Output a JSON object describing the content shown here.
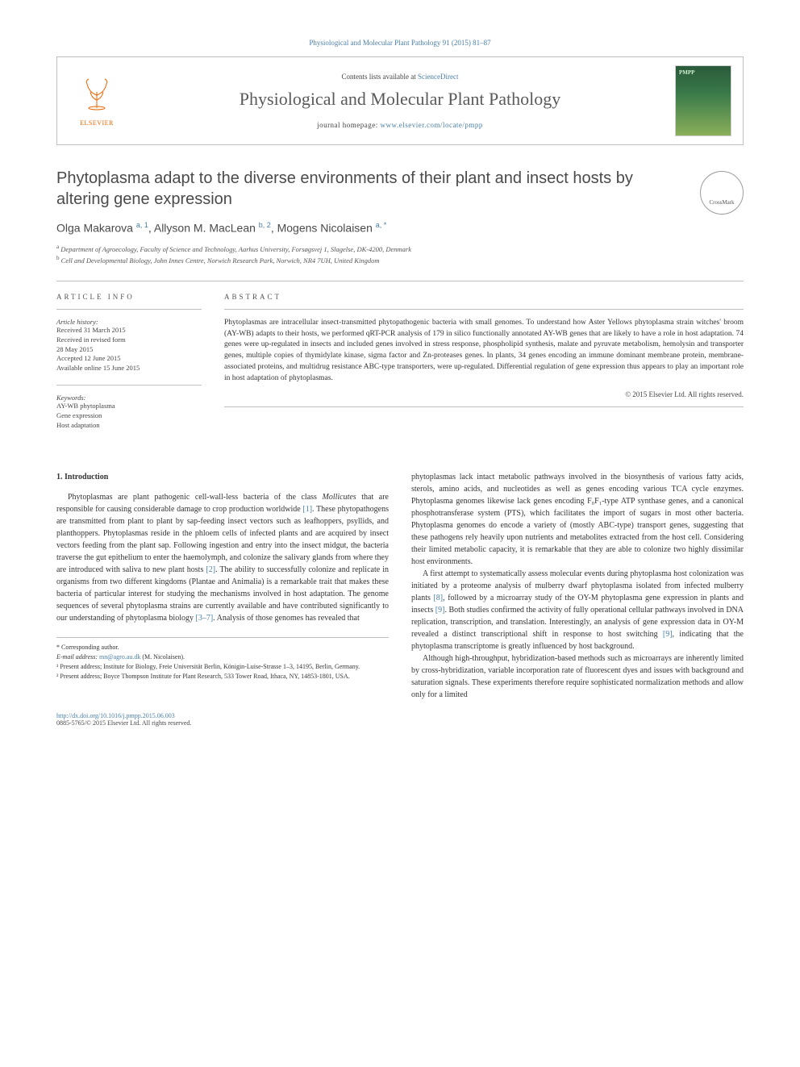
{
  "citation": "Physiological and Molecular Plant Pathology 91 (2015) 81–87",
  "header": {
    "contents_prefix": "Contents lists available at ",
    "contents_link": "ScienceDirect",
    "journal_name": "Physiological and Molecular Plant Pathology",
    "homepage_prefix": "journal homepage: ",
    "homepage_url": "www.elsevier.com/locate/pmpp",
    "publisher": "ELSEVIER",
    "cover_label": "PMPP"
  },
  "crossmark": "CrossMark",
  "title": "Phytoplasma adapt to the diverse environments of their plant and insect hosts by altering gene expression",
  "authors_html": "Olga Makarova <sup>a, 1</sup>, Allyson M. MacLean <sup>b, 2</sup>, Mogens Nicolaisen <sup>a, *</sup>",
  "affiliations": {
    "a": "Department of Agroecology, Faculty of Science and Technology, Aarhus University, Forsøgsvej 1, Slagelse, DK-4200, Denmark",
    "b": "Cell and Developmental Biology, John Innes Centre, Norwich Research Park, Norwich, NR4 7UH, United Kingdom"
  },
  "article_info": {
    "header": "ARTICLE INFO",
    "history_label": "Article history:",
    "history": [
      "Received 31 March 2015",
      "Received in revised form",
      "28 May 2015",
      "Accepted 12 June 2015",
      "Available online 15 June 2015"
    ],
    "keywords_label": "Keywords:",
    "keywords": [
      "AY-WB phytoplasma",
      "Gene expression",
      "Host adaptation"
    ]
  },
  "abstract": {
    "header": "ABSTRACT",
    "text": "Phytoplasmas are intracellular insect-transmitted phytopathogenic bacteria with small genomes. To understand how Aster Yellows phytoplasma strain witches' broom (AY-WB) adapts to their hosts, we performed qRT-PCR analysis of 179 in silico functionally annotated AY-WB genes that are likely to have a role in host adaptation. 74 genes were up-regulated in insects and included genes involved in stress response, phospholipid synthesis, malate and pyruvate metabolism, hemolysin and transporter genes, multiple copies of thymidylate kinase, sigma factor and Zn-proteases genes. In plants, 34 genes encoding an immune dominant membrane protein, membrane-associated proteins, and multidrug resistance ABC-type transporters, were up-regulated. Differential regulation of gene expression thus appears to play an important role in host adaptation of phytoplasmas.",
    "copyright": "© 2015 Elsevier Ltd. All rights reserved."
  },
  "body": {
    "section_heading": "1. Introduction",
    "col1_p1": "Phytoplasmas are plant pathogenic cell-wall-less bacteria of the class Mollicutes that are responsible for causing considerable damage to crop production worldwide [1]. These phytopathogens are transmitted from plant to plant by sap-feeding insect vectors such as leafhoppers, psyllids, and planthoppers. Phytoplasmas reside in the phloem cells of infected plants and are acquired by insect vectors feeding from the plant sap. Following ingestion and entry into the insect midgut, the bacteria traverse the gut epithelium to enter the haemolymph, and colonize the salivary glands from where they are introduced with saliva to new plant hosts [2]. The ability to successfully colonize and replicate in organisms from two different kingdoms (Plantae and Animalia) is a remarkable trait that makes these bacteria of particular interest for studying the mechanisms involved in host adaptation. The genome sequences of several phytoplasma strains are currently available and have contributed significantly to our understanding of phytoplasma biology [3–7]. Analysis of those genomes has revealed that",
    "col2_p1": "phytoplasmas lack intact metabolic pathways involved in the biosynthesis of various fatty acids, sterols, amino acids, and nucleotides as well as genes encoding various TCA cycle enzymes. Phytoplasma genomes likewise lack genes encoding F₀F₁-type ATP synthase genes, and a canonical phosphotransferase system (PTS), which facilitates the import of sugars in most other bacteria. Phytoplasma genomes do encode a variety of (mostly ABC-type) transport genes, suggesting that these pathogens rely heavily upon nutrients and metabolites extracted from the host cell. Considering their limited metabolic capacity, it is remarkable that they are able to colonize two highly dissimilar host environments.",
    "col2_p2": "A first attempt to systematically assess molecular events during phytoplasma host colonization was initiated by a proteome analysis of mulberry dwarf phytoplasma isolated from infected mulberry plants [8], followed by a microarray study of the OY-M phytoplasma gene expression in plants and insects [9]. Both studies confirmed the activity of fully operational cellular pathways involved in DNA replication, transcription, and translation. Interestingly, an analysis of gene expression data in OY-M revealed a distinct transcriptional shift in response to host switching [9], indicating that the phytoplasma transcriptome is greatly influenced by host background.",
    "col2_p3": "Although high-throughput, hybridization-based methods such as microarrays are inherently limited by cross-hybridization, variable incorporation rate of fluorescent dyes and issues with background and saturation signals. These experiments therefore require sophisticated normalization methods and allow only for a limited"
  },
  "footnotes": {
    "corresponding": "* Corresponding author.",
    "email_label": "E-mail address: ",
    "email": "mn@agro.au.dk",
    "email_suffix": " (M. Nicolaisen).",
    "fn1": "¹ Present address; Institute for Biology, Freie Universität Berlin, Königin-Luise-Strasse 1–3, 14195, Berlin, Germany.",
    "fn2": "² Present address; Boyce Thompson Institute for Plant Research, 533 Tower Road, Ithaca, NY, 14853-1801, USA."
  },
  "bottom": {
    "doi": "http://dx.doi.org/10.1016/j.pmpp.2015.06.003",
    "issn": "0885-5765/© 2015 Elsevier Ltd. All rights reserved."
  },
  "colors": {
    "link": "#4a7fa8",
    "publisher": "#EB6500",
    "text": "#3a3a3a",
    "border": "#bfbfbf"
  }
}
